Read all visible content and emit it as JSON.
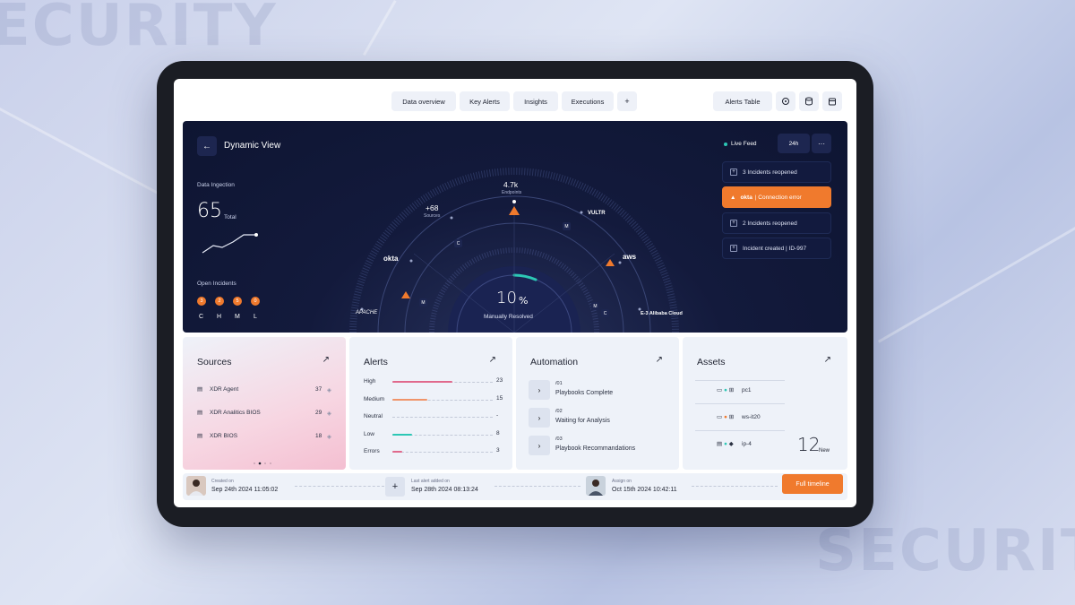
{
  "background": {
    "word": "SECURITY",
    "word_partial": "ECURITY"
  },
  "nav": {
    "tabs": [
      "Data overview",
      "Key Alerts",
      "Insights",
      "Executions"
    ],
    "add_label": "+",
    "alerts_table": "Alerts Table"
  },
  "hero": {
    "title": "Dynamic View",
    "ingestion": {
      "label": "Data Ingection",
      "value": "65",
      "unit": "Total"
    },
    "open_incidents": {
      "label": "Open Incidents",
      "counts": [
        "3",
        "2",
        "5",
        "0"
      ],
      "levels": [
        "C",
        "H",
        "M",
        "L"
      ]
    },
    "radar": {
      "endpoints": {
        "value": "4.7k",
        "label": "Endpoints"
      },
      "sources": {
        "value": "+68",
        "label": "Sources"
      },
      "center_value": "10",
      "center_unit": "%",
      "center_label": "Manually Resolved",
      "progress": 0.1,
      "vendors": [
        "okta",
        "VULTR",
        "aws",
        "APACHE",
        "E-3 Alibaba Cloud"
      ],
      "markers": [
        "C",
        "M",
        "M",
        "M",
        "C"
      ]
    },
    "live_feed": "Live Feed",
    "range": "24h",
    "more": "···",
    "feed": [
      {
        "text": "3 Incidents reopened",
        "error": false
      },
      {
        "vendor": "okta",
        "text": "| Connection error",
        "error": true
      },
      {
        "text": "2 Incidents reopened",
        "error": false
      },
      {
        "text": "Incident created | ID-997",
        "error": false
      }
    ]
  },
  "sources": {
    "title": "Sources",
    "items": [
      {
        "name": "XDR Agent",
        "count": "37"
      },
      {
        "name": "XDR Analitics BIOS",
        "count": "29"
      },
      {
        "name": "XDR BIOS",
        "count": "18"
      }
    ]
  },
  "alerts": {
    "title": "Alerts",
    "rows": [
      {
        "label": "High",
        "value": "23",
        "fill": 0.6,
        "color": "#e0698c"
      },
      {
        "label": "Medium",
        "value": "15",
        "fill": 0.35,
        "color": "#f0946a"
      },
      {
        "label": "Neutral",
        "value": "-",
        "fill": 0,
        "color": "#b0b6c8"
      },
      {
        "label": "Low",
        "value": "8",
        "fill": 0.2,
        "color": "#2cc7b5"
      },
      {
        "label": "Errors",
        "value": "3",
        "fill": 0.1,
        "color": "#e0698c"
      }
    ]
  },
  "automation": {
    "title": "Automation",
    "items": [
      {
        "num": "/01",
        "label": "Playbooks Complete"
      },
      {
        "num": "/02",
        "label": "Waiting for Analysis"
      },
      {
        "num": "/03",
        "label": "Playbook Recommandations"
      }
    ]
  },
  "assets": {
    "title": "Assets",
    "items": [
      "pc1",
      "ws-it20",
      "ip-4"
    ],
    "new_count": "12",
    "new_label": "New"
  },
  "footer": {
    "created": {
      "label": "Created on",
      "value": "Sep 24th 2024 11:05:02"
    },
    "last_alert": {
      "label": "Last alert added on",
      "value": "Sep 28th 2024 08:13:24"
    },
    "assign": {
      "label": "Assign on",
      "value": "Oct 15th 2024 10:42:11"
    },
    "full_timeline": "Full timeline"
  },
  "colors": {
    "accent": "#f07a2d",
    "teal": "#2cc7b5",
    "navy": "#0e1532"
  }
}
